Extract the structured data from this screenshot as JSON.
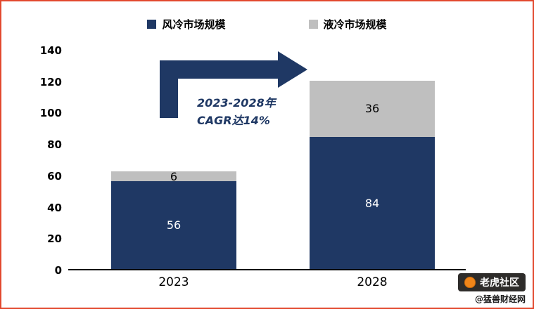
{
  "chart_data": {
    "type": "bar",
    "stacked": true,
    "categories": [
      "2023",
      "2028"
    ],
    "series": [
      {
        "name": "风冷市场规模",
        "color": "#1f3864",
        "label_color": "#ffffff",
        "values": [
          56,
          84
        ]
      },
      {
        "name": "液冷市场规模",
        "color": "#bfbfbf",
        "label_color": "#000000",
        "values": [
          6,
          36
        ]
      }
    ],
    "title": "",
    "xlabel": "",
    "ylabel": "",
    "ylim": [
      0,
      140
    ],
    "yticks": [
      0,
      20,
      40,
      60,
      80,
      100,
      120,
      140
    ],
    "grid": false,
    "legend_position": "top"
  },
  "annotation": {
    "line1": "2023-2028年",
    "line2": "CAGR达14%"
  },
  "watermark": {
    "badge": "老虎社区",
    "handle": "@猛兽财经网"
  },
  "colors": {
    "air_series": "#1f3864",
    "liquid_series": "#bfbfbf",
    "arrow": "#1f3864",
    "frame_border": "#e2492e"
  }
}
